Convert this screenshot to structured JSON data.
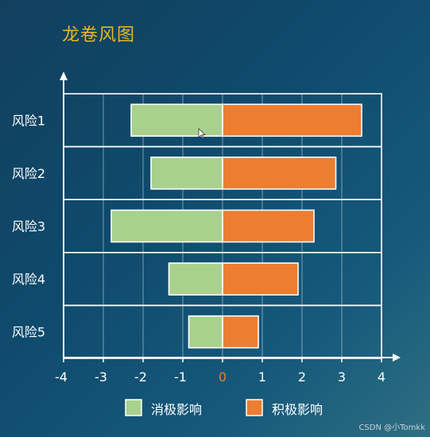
{
  "title": "龙卷风图",
  "watermark": "CSDN @小Tomkk",
  "colors": {
    "negative": "#a9d18e",
    "positive": "#ed7d31",
    "title": "#e9b81f",
    "zero_tick": "#ed7d31"
  },
  "chart_data": {
    "type": "bar",
    "orientation": "horizontal",
    "layout": "tornado",
    "categories": [
      "风险1",
      "风险2",
      "风险3",
      "风险4",
      "风险5"
    ],
    "series": [
      {
        "name": "消极影响",
        "values": [
          -2.3,
          -1.8,
          -2.8,
          -1.35,
          -0.85
        ]
      },
      {
        "name": "积极影响",
        "values": [
          3.5,
          2.85,
          2.3,
          1.9,
          0.9
        ]
      }
    ],
    "xlim": [
      -4,
      4
    ],
    "xticks": [
      "-4",
      "-3",
      "-2",
      "-1",
      "0",
      "1",
      "2",
      "3",
      "4"
    ],
    "grid": true,
    "legend_position": "bottom"
  }
}
